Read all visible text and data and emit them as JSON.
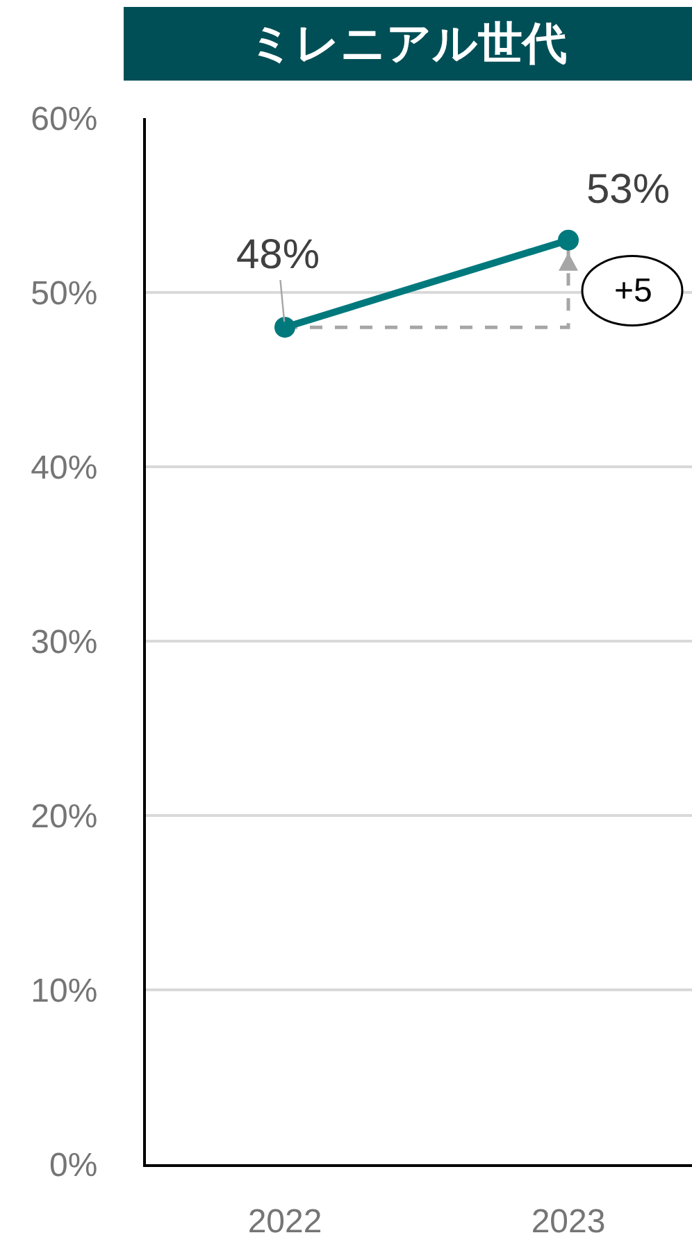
{
  "chart_data": {
    "type": "line",
    "title": "ミレニアル世代",
    "categories": [
      "2022",
      "2023"
    ],
    "series": [
      {
        "color": "#00797d",
        "values": [
          48,
          53
        ],
        "value_labels": [
          "48%",
          "53%"
        ]
      }
    ],
    "marker": "circle",
    "line_style": "solid",
    "ylim": [
      0,
      60
    ],
    "yticks": [
      {
        "value": 0,
        "label": "0%"
      },
      {
        "value": 10,
        "label": "10%"
      },
      {
        "value": 20,
        "label": "20%"
      },
      {
        "value": 30,
        "label": "30%"
      },
      {
        "value": 40,
        "label": "40%"
      },
      {
        "value": 50,
        "label": "50%"
      },
      {
        "value": 60,
        "label": "60%"
      }
    ],
    "grid": "y",
    "annotations": [
      "+5"
    ]
  }
}
